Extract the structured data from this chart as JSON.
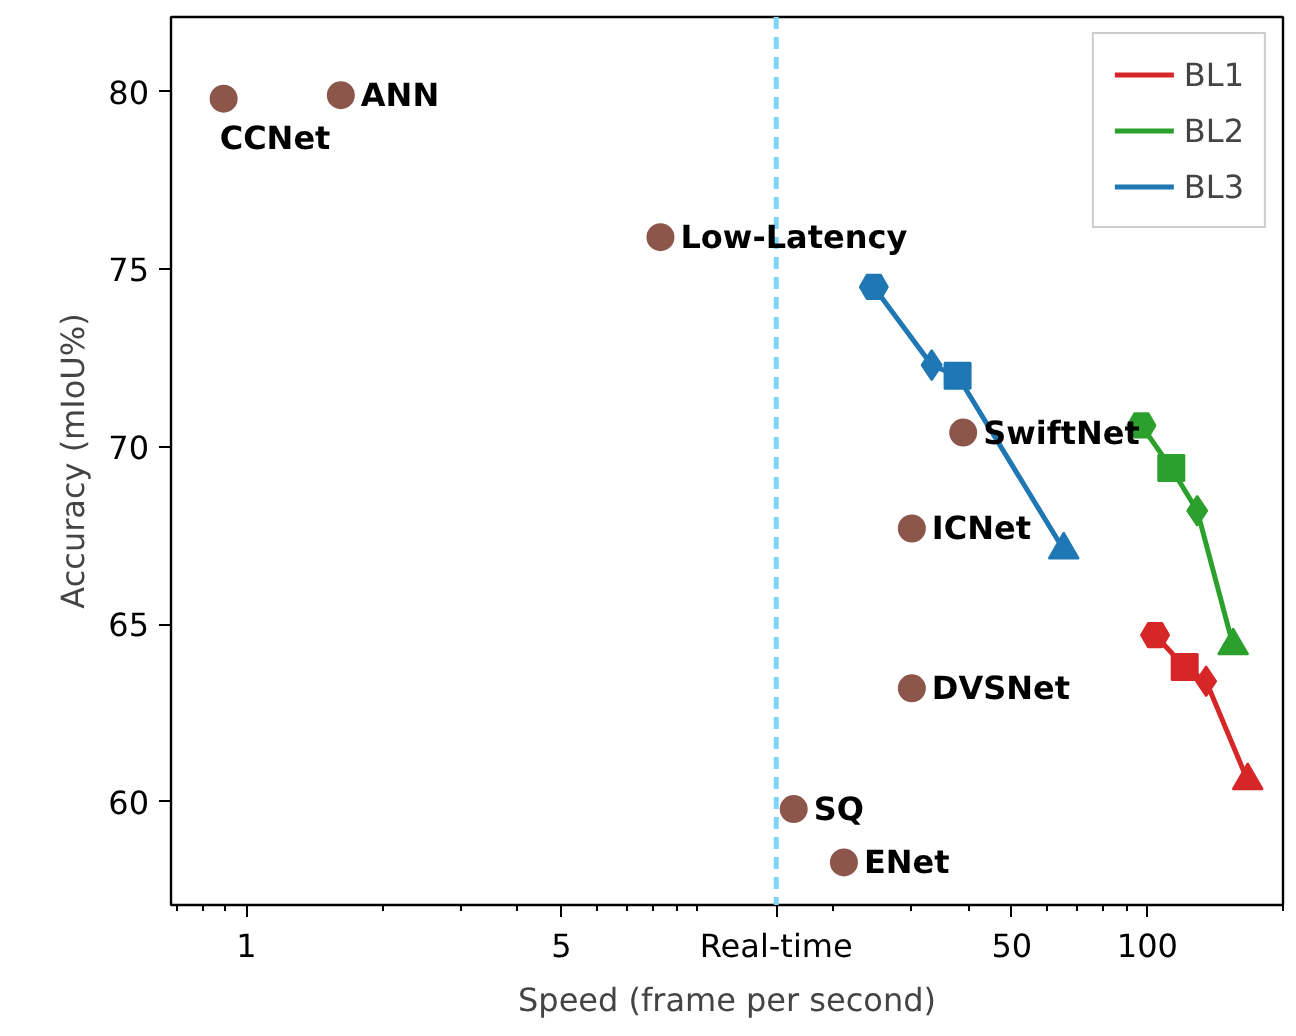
{
  "chart_data": {
    "type": "scatter",
    "xlabel": "Speed (frame per second)",
    "ylabel": "Accuracy (mIoU%)",
    "log": "x",
    "xlim": [
      0.68,
      200
    ],
    "ylim": [
      57.1,
      82.1
    ],
    "xticks": [
      1,
      5,
      {
        "value": 15,
        "label": "Real-time"
      },
      50,
      100
    ],
    "yticks": [
      60,
      65,
      70,
      75,
      80
    ],
    "grid": false,
    "legend": "top right",
    "series": [
      {
        "color": "#8c564b",
        "marker": "circle",
        "x": [
          0.89,
          1.62,
          8.3,
          39,
          30,
          30,
          16.4,
          21.2
        ],
        "values": [
          79.8,
          79.9,
          75.9,
          70.4,
          67.7,
          63.2,
          59.8,
          58.3
        ]
      },
      {
        "type": "line",
        "name": "BL1",
        "color": "#d62728",
        "marker": [
          "hexagon",
          "square",
          "diamond",
          "triangle"
        ],
        "x": [
          104,
          121,
          135,
          167
        ],
        "values": [
          64.7,
          63.8,
          63.4,
          60.6
        ]
      },
      {
        "type": "line",
        "name": "BL2",
        "color": "#2ca02c",
        "marker": [
          "hexagon",
          "square",
          "diamond",
          "triangle"
        ],
        "x": [
          97,
          113,
          129,
          155
        ],
        "values": [
          70.6,
          69.4,
          68.2,
          64.4
        ]
      },
      {
        "type": "line",
        "name": "BL3",
        "color": "#1f77b4",
        "marker": [
          "hexagon",
          "diamond",
          "square",
          "triangle"
        ],
        "x": [
          24.7,
          33.2,
          37.9,
          65.2
        ],
        "values": [
          74.5,
          72.3,
          72.0,
          67.1
        ]
      }
    ],
    "annotations": [
      {
        "text": "CCNet",
        "x": 0.89,
        "y": 79.8
      },
      {
        "text": "ANN",
        "x": 1.62,
        "y": 79.9
      },
      {
        "text": "Low-Latency",
        "x": 8.3,
        "y": 75.9
      },
      {
        "text": "SwiftNet",
        "x": 39,
        "y": 70.4
      },
      {
        "text": "ICNet",
        "x": 30,
        "y": 67.7
      },
      {
        "text": "DVSNet",
        "x": 30,
        "y": 63.2
      },
      {
        "text": "SQ",
        "x": 16.4,
        "y": 59.8
      },
      {
        "text": "ENet",
        "x": 21.2,
        "y": 58.3
      }
    ],
    "ref_lines": [
      {
        "axis": "x",
        "value": 15,
        "color": "#7fd4f9",
        "line_style": "dashed"
      }
    ]
  }
}
